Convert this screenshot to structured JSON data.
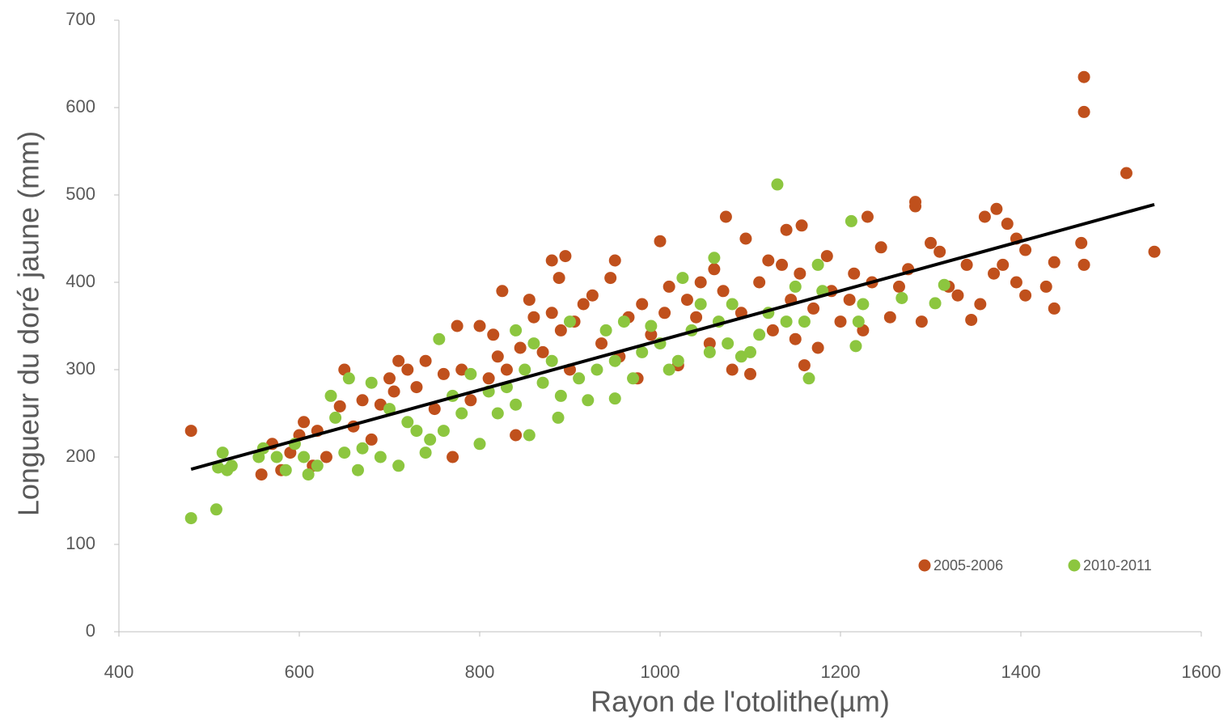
{
  "chart_data": {
    "type": "scatter",
    "x_label": "Rayon de l'otolithe(µm)",
    "y_label": "Longueur du doré jaune (mm)",
    "xlim": [
      400,
      1600
    ],
    "xticks": [
      400,
      600,
      800,
      1000,
      1200,
      1400,
      1600
    ],
    "ylim": [
      0,
      700
    ],
    "yticks": [
      0,
      100,
      200,
      300,
      400,
      500,
      600,
      700
    ],
    "legend": "bottom-right",
    "series": [
      {
        "name": "2005-2006",
        "color": "#c0501c",
        "x": [
          480,
          1470,
          1470,
          1517,
          1548,
          1467,
          1470,
          1437,
          1437,
          1428,
          1073,
          1000,
          895,
          880,
          950,
          888,
          825,
          1283,
          1283,
          1373,
          1140,
          1157,
          1230,
          1360,
          1385,
          1395,
          1405,
          558,
          570,
          580,
          590,
          600,
          605,
          615,
          620,
          630,
          645,
          650,
          660,
          670,
          680,
          690,
          700,
          705,
          710,
          720,
          730,
          740,
          750,
          760,
          770,
          775,
          780,
          790,
          800,
          810,
          815,
          820,
          830,
          840,
          845,
          855,
          860,
          870,
          880,
          890,
          900,
          905,
          915,
          925,
          935,
          945,
          955,
          965,
          975,
          980,
          990,
          1005,
          1010,
          1020,
          1030,
          1040,
          1045,
          1055,
          1060,
          1070,
          1080,
          1090,
          1095,
          1100,
          1110,
          1120,
          1125,
          1135,
          1145,
          1150,
          1155,
          1160,
          1170,
          1175,
          1185,
          1190,
          1200,
          1210,
          1215,
          1225,
          1235,
          1245,
          1255,
          1265,
          1275,
          1290,
          1300,
          1310,
          1320,
          1330,
          1340,
          1345,
          1355,
          1370,
          1380,
          1395,
          1405
        ],
        "y": [
          230,
          635,
          595,
          525,
          435,
          445,
          420,
          370,
          423,
          395,
          475,
          447,
          430,
          425,
          425,
          405,
          390,
          492,
          487,
          484,
          460,
          465,
          475,
          475,
          467,
          450,
          437,
          180,
          215,
          185,
          205,
          225,
          240,
          190,
          230,
          200,
          258,
          300,
          235,
          265,
          220,
          260,
          290,
          275,
          310,
          300,
          280,
          310,
          255,
          295,
          200,
          350,
          300,
          265,
          350,
          290,
          340,
          315,
          300,
          225,
          325,
          380,
          360,
          320,
          365,
          345,
          300,
          355,
          375,
          385,
          330,
          405,
          315,
          360,
          290,
          375,
          340,
          365,
          395,
          305,
          380,
          360,
          400,
          330,
          415,
          390,
          300,
          365,
          450,
          295,
          400,
          425,
          345,
          420,
          380,
          335,
          410,
          305,
          370,
          325,
          430,
          390,
          355,
          380,
          410,
          345,
          400,
          440,
          360,
          395,
          415,
          355,
          445,
          435,
          395,
          385,
          420,
          357,
          375,
          410,
          420,
          400,
          385
        ]
      },
      {
        "name": "2010-2011",
        "color": "#8cc63f",
        "x": [
          480,
          508,
          1130,
          1212,
          1165,
          1060,
          1217,
          755,
          840,
          950,
          887,
          855,
          510,
          515,
          520,
          525,
          555,
          560,
          575,
          585,
          595,
          605,
          610,
          620,
          635,
          640,
          650,
          655,
          665,
          670,
          680,
          690,
          700,
          710,
          720,
          730,
          740,
          745,
          760,
          770,
          780,
          790,
          800,
          810,
          820,
          830,
          840,
          850,
          860,
          870,
          880,
          890,
          900,
          910,
          920,
          930,
          940,
          950,
          960,
          970,
          980,
          990,
          1000,
          1010,
          1020,
          1025,
          1035,
          1045,
          1055,
          1065,
          1075,
          1080,
          1090,
          1100,
          1110,
          1120,
          1140,
          1150,
          1160,
          1175,
          1180,
          1220,
          1225,
          1268,
          1305,
          1315
        ],
        "y": [
          130,
          140,
          512,
          470,
          290,
          428,
          327,
          335,
          345,
          267,
          245,
          225,
          188,
          205,
          185,
          190,
          200,
          210,
          200,
          185,
          215,
          200,
          180,
          190,
          270,
          245,
          205,
          290,
          185,
          210,
          285,
          200,
          255,
          190,
          240,
          230,
          205,
          220,
          230,
          270,
          250,
          295,
          215,
          275,
          250,
          280,
          260,
          300,
          330,
          285,
          310,
          270,
          355,
          290,
          265,
          300,
          345,
          310,
          355,
          290,
          320,
          350,
          330,
          300,
          310,
          405,
          345,
          375,
          320,
          355,
          330,
          375,
          315,
          320,
          340,
          365,
          355,
          395,
          355,
          420,
          390,
          355,
          375,
          382,
          376,
          397
        ]
      }
    ],
    "trendline": {
      "color": "#000000",
      "x": [
        480,
        1548
      ],
      "y": [
        186,
        489
      ]
    }
  }
}
